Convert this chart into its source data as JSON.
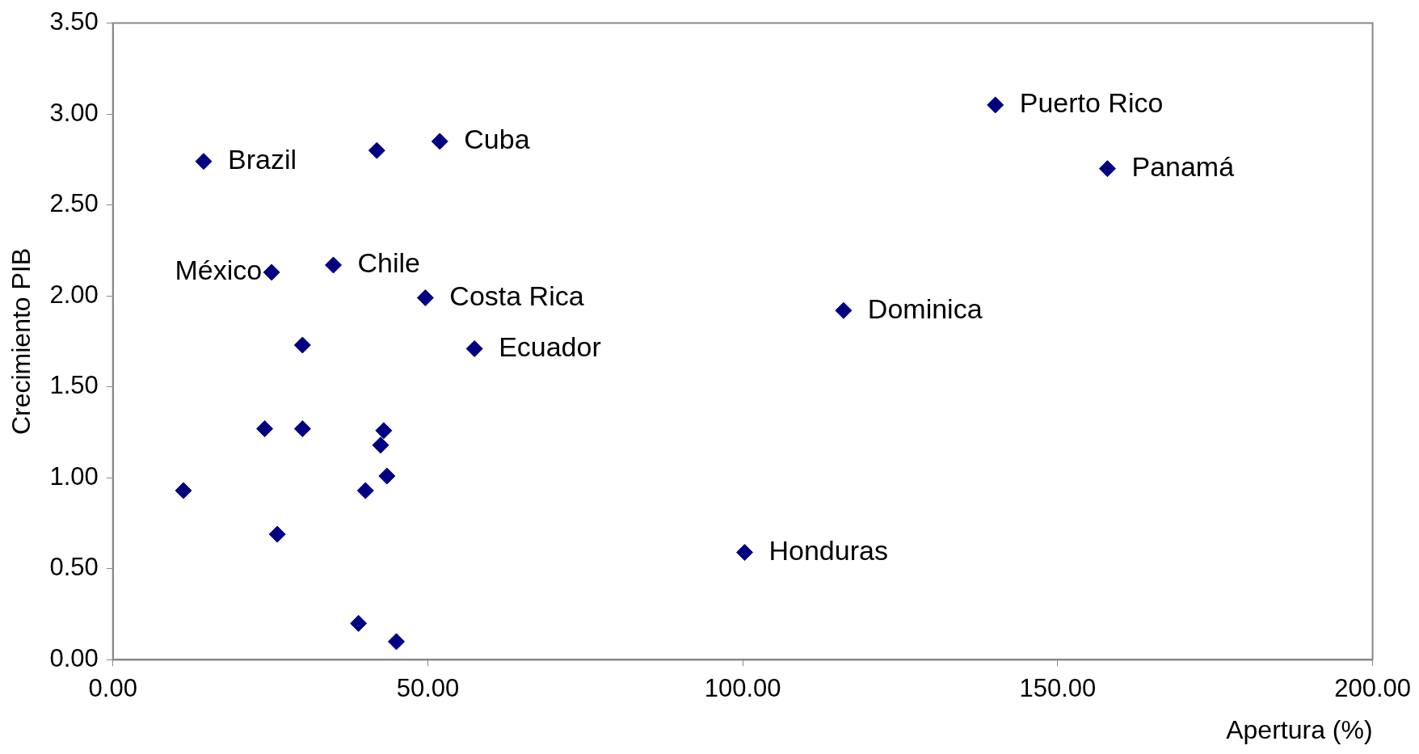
{
  "chart_data": {
    "type": "scatter",
    "xlabel": "Apertura (%)",
    "ylabel": "Crecimiento PIB",
    "x": [
      14.4,
      41.9,
      51.9,
      140.1,
      157.9,
      25.2,
      35.0,
      49.6,
      57.4,
      116.0,
      100.3,
      30.1,
      24.1,
      30.1,
      43.0,
      42.5,
      43.5,
      40.1,
      11.2,
      26.1,
      39.0,
      45.0
    ],
    "series": [
      {
        "color": "#000080",
        "values": [
          2.74,
          2.8,
          2.85,
          3.05,
          2.7,
          2.13,
          2.17,
          1.99,
          1.71,
          1.92,
          0.59,
          1.73,
          1.27,
          1.27,
          1.26,
          1.18,
          1.01,
          0.93,
          0.93,
          0.69,
          0.2,
          0.1
        ]
      }
    ],
    "xlim": [
      0,
      200
    ],
    "xticks": [
      {
        "value": 0,
        "label": "0.00"
      },
      {
        "value": 50,
        "label": "50.00"
      },
      {
        "value": 100,
        "label": "100.00"
      },
      {
        "value": 150,
        "label": "150.00"
      },
      {
        "value": 200,
        "label": "200.00"
      }
    ],
    "ylim": [
      0,
      3.5
    ],
    "yticks": [
      {
        "value": 0,
        "label": "0.00"
      },
      {
        "value": 0.5,
        "label": "0.50"
      },
      {
        "value": 1,
        "label": "1.00"
      },
      {
        "value": 1.5,
        "label": "1.50"
      },
      {
        "value": 2,
        "label": "2.00"
      },
      {
        "value": 2.5,
        "label": "2.50"
      },
      {
        "value": 3,
        "label": "3.00"
      },
      {
        "value": 3.5,
        "label": "3.50"
      }
    ],
    "marker": "diamond",
    "legend": false,
    "grid": false,
    "annotations": [
      {
        "text": "Brazil",
        "x": 14.4,
        "y": 2.74
      },
      {
        "text": "Cuba",
        "x": 51.9,
        "y": 2.85
      },
      {
        "text": "Puerto Rico",
        "x": 140.1,
        "y": 3.05
      },
      {
        "text": "Panamá",
        "x": 157.9,
        "y": 2.7
      },
      {
        "text": "México",
        "x": 25.2,
        "y": 2.13
      },
      {
        "text": "Chile",
        "x": 35.0,
        "y": 2.17
      },
      {
        "text": "Costa Rica",
        "x": 49.6,
        "y": 1.99
      },
      {
        "text": "Ecuador",
        "x": 57.4,
        "y": 1.71
      },
      {
        "text": "Dominica",
        "x": 116.0,
        "y": 1.92
      },
      {
        "text": "Honduras",
        "x": 100.3,
        "y": 0.59
      }
    ]
  }
}
